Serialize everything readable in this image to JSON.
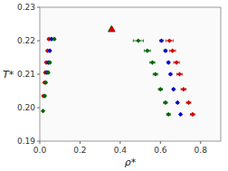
{
  "chart_data": {
    "type": "scatter",
    "x_label": "ρ*",
    "y_label": "T*",
    "xlim": [
      0.0,
      0.9
    ],
    "ylim": [
      0.19,
      0.23
    ],
    "xticks": [
      {
        "value": 0.0,
        "label": "0.0"
      },
      0.2,
      0.4,
      0.6,
      0.8
    ],
    "yticks": [
      0.19,
      {
        "value": 0.2,
        "label": "0.20"
      },
      0.21,
      0.22,
      0.23
    ],
    "grid": false,
    "series": [
      {
        "color": "#CC0000",
        "marker": "diamond",
        "x": [
          0.045,
          0.038,
          0.032,
          0.027,
          0.023,
          0.018
        ],
        "xerr": [
          0.006,
          0.005,
          0.004,
          0.004,
          0.003,
          0.003
        ],
        "values": [
          0.2205,
          0.217,
          0.2135,
          0.2105,
          0.2075,
          0.2035
        ]
      },
      {
        "color": "#0000CC",
        "marker": "diamond",
        "x": [
          0.058,
          0.05,
          0.043,
          0.036
        ],
        "xerr": [
          0.004,
          0.004,
          0.003,
          0.003
        ],
        "values": [
          0.2205,
          0.217,
          0.2135,
          0.2105
        ]
      },
      {
        "color": "#006400",
        "marker": "diamond",
        "x": [
          0.072,
          0.05,
          0.042,
          0.03,
          0.025,
          0.016
        ],
        "xerr": [
          0.005,
          0.004,
          0.004,
          0.003,
          0.003,
          0.002
        ],
        "values": [
          0.2205,
          0.2135,
          0.2105,
          0.2075,
          0.2035,
          0.199
        ]
      },
      {
        "color": "#006400",
        "marker": "diamond",
        "x": [
          0.49,
          0.535,
          0.56,
          0.575,
          0.6,
          0.625,
          0.64
        ],
        "xerr": [
          0.025,
          0.015,
          0.012,
          0.011,
          0.01,
          0.009,
          0.009
        ],
        "values": [
          0.22,
          0.217,
          0.2135,
          0.21,
          0.2055,
          0.2015,
          0.198
        ]
      },
      {
        "color": "#0000CC",
        "marker": "diamond",
        "x": [
          0.605,
          0.625,
          0.64,
          0.65,
          0.665,
          0.685,
          0.7
        ],
        "xerr": [
          0.007,
          0.007,
          0.006,
          0.006,
          0.005,
          0.005,
          0.005
        ],
        "values": [
          0.22,
          0.217,
          0.2135,
          0.21,
          0.2055,
          0.2015,
          0.198
        ]
      },
      {
        "color": "#CC0000",
        "marker": "diamond",
        "x": [
          0.645,
          0.66,
          0.68,
          0.695,
          0.715,
          0.74,
          0.76
        ],
        "xerr": [
          0.018,
          0.015,
          0.014,
          0.013,
          0.012,
          0.011,
          0.01
        ],
        "values": [
          0.22,
          0.217,
          0.2135,
          0.21,
          0.2055,
          0.2015,
          0.198
        ]
      },
      {
        "color": "#006400",
        "marker": "triangle",
        "x": [
          0.355
        ],
        "values": [
          0.2235
        ]
      },
      {
        "color": "#CC0000",
        "marker": "triangle",
        "x": [
          0.359
        ],
        "values": [
          0.2235
        ]
      }
    ]
  }
}
